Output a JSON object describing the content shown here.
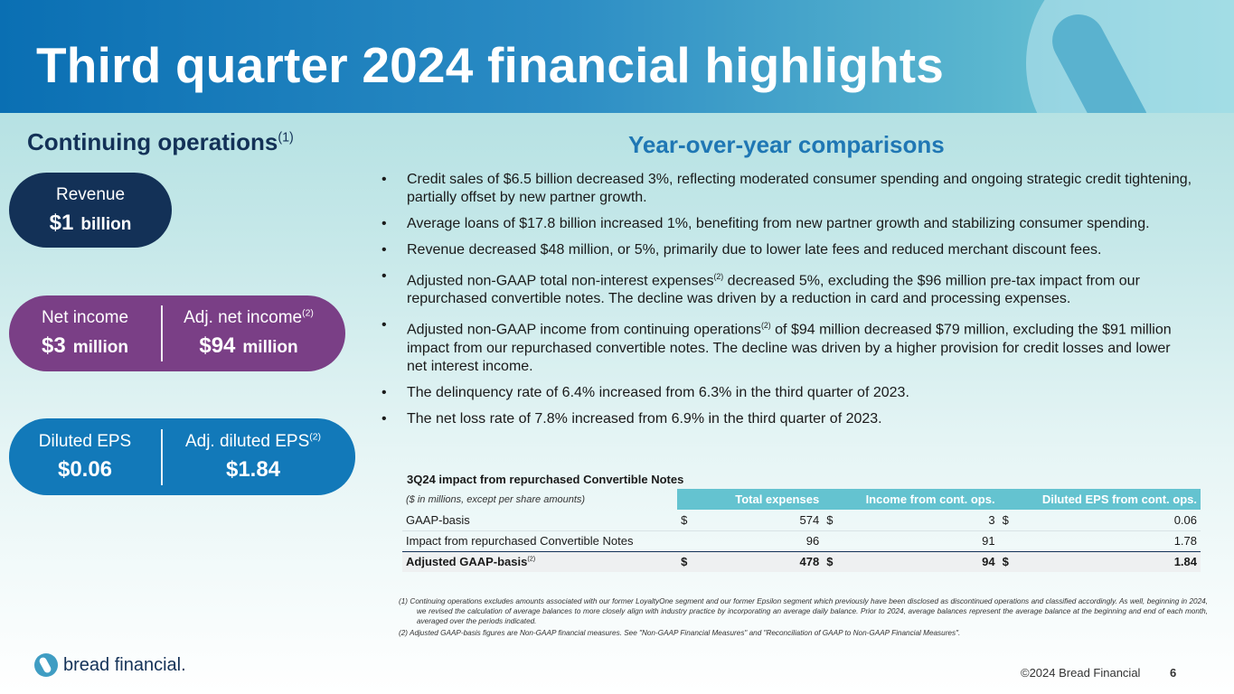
{
  "title": "Third quarter 2024 financial highlights",
  "continuing_ops": {
    "label": "Continuing operations",
    "sup": "(1)"
  },
  "yoy_heading": "Year-over-year comparisons",
  "metrics": {
    "revenue": {
      "label": "Revenue",
      "value": "$1",
      "unit": "billion"
    },
    "net_income": {
      "label": "Net income",
      "value": "$3",
      "unit": "million"
    },
    "adj_net_income": {
      "label": "Adj. net income",
      "sup": "(2)",
      "value": "$94",
      "unit": "million"
    },
    "diluted_eps": {
      "label": "Diluted EPS",
      "value": "$0.06"
    },
    "adj_diluted_eps": {
      "label": "Adj. diluted EPS",
      "sup": "(2)",
      "value": "$1.84"
    }
  },
  "bullets": [
    {
      "text": "Credit sales of $6.5 billion decreased 3%, reflecting moderated consumer spending and ongoing strategic credit tightening, partially offset by new partner growth."
    },
    {
      "text": "Average loans of $17.8 billion increased 1%, benefiting from new partner growth and stabilizing consumer spending."
    },
    {
      "text": "Revenue decreased $48 million, or 5%, primarily due to lower late fees and reduced merchant discount fees."
    },
    {
      "pre": "Adjusted non-GAAP total non-interest expenses",
      "sup": "(2)",
      "post": " decreased 5%, excluding the $96 million pre-tax impact from our repurchased convertible notes.  The decline was driven by a reduction in card and processing expenses."
    },
    {
      "pre": "Adjusted non-GAAP income from continuing operations",
      "sup": "(2)",
      "post": " of $94 million decreased $79 million, excluding the $91 million impact from our repurchased convertible notes.  The decline was driven by a higher provision for credit losses and lower net interest income."
    },
    {
      "text": "The delinquency rate of 6.4% increased from 6.3% in the third quarter of 2023."
    },
    {
      "text": "The net loss rate of 7.8% increased from 6.9% in the third quarter of 2023."
    }
  ],
  "table": {
    "title": "3Q24 impact from repurchased Convertible Notes",
    "note": "($ in millions, except per share amounts)",
    "headers": [
      "Total expenses",
      "Income from cont. ops.",
      "Diluted EPS from cont. ops."
    ],
    "rows": [
      {
        "label": "GAAP-basis",
        "d1": "$",
        "v1": "574",
        "d2": "$",
        "v2": "3",
        "d3": "$",
        "v3": "0.06"
      },
      {
        "label": "Impact from repurchased Convertible Notes",
        "d1": "",
        "v1": "96",
        "d2": "",
        "v2": "91",
        "d3": "",
        "v3": "1.78"
      },
      {
        "label": "Adjusted GAAP-basis",
        "sup": "(2)",
        "d1": "$",
        "v1": "478",
        "d2": "$",
        "v2": "94",
        "d3": "$",
        "v3": "1.84"
      }
    ]
  },
  "footnotes": [
    "(1)  Continuing operations excludes amounts associated with our former LoyaltyOne segment and our former Epsilon segment which previously have been disclosed as discontinued operations and classified accordingly. As well, beginning in 2024, we revised the calculation of average balances to more closely align with industry practice by incorporating an average daily balance. Prior to 2024, average balances represent the average balance at the beginning and end of each month, averaged over the periods indicated.",
    "(2)  Adjusted GAAP-basis figures are Non-GAAP financial measures.  See \"Non-GAAP Financial Measures\" and \"Reconciliation of GAAP to Non-GAAP Financial Measures\"."
  ],
  "logo_text": "bread financial",
  "logo_mark": ".",
  "copyright": "©2024 Bread Financial",
  "page_number": "6",
  "colors": {
    "navy": "#133157",
    "purple": "#7a3f86",
    "blue": "#1279b9",
    "teal": "#64c3d0"
  }
}
